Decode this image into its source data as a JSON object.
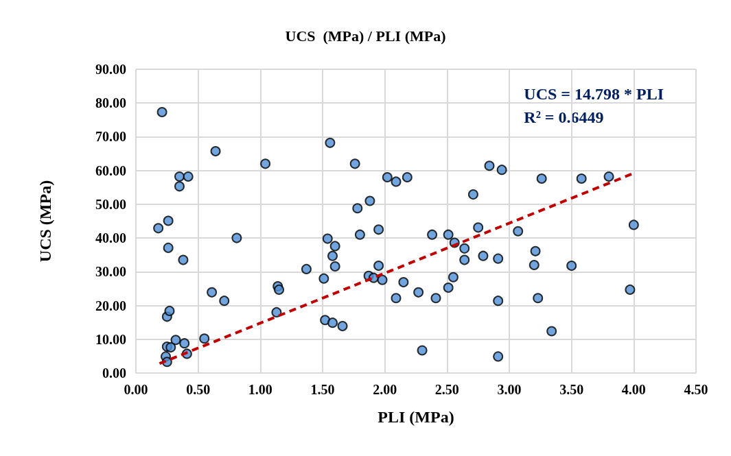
{
  "chart_data": {
    "type": "scatter",
    "title": "UCS  (MPa) / PLI (MPa)",
    "xlabel": "PLI (MPa)",
    "ylabel": "UCS (MPa)",
    "xlim": [
      0,
      4.5
    ],
    "xticks": [
      {
        "value": 0,
        "label": "0.00"
      },
      {
        "value": 0.5,
        "label": "0.50"
      },
      {
        "value": 1,
        "label": "1.00"
      },
      {
        "value": 1.5,
        "label": "1.50"
      },
      {
        "value": 2,
        "label": "2.00"
      },
      {
        "value": 2.5,
        "label": "2.50"
      },
      {
        "value": 3,
        "label": "3.00"
      },
      {
        "value": 3.5,
        "label": "3.50"
      },
      {
        "value": 4,
        "label": "4.00"
      },
      {
        "value": 4.5,
        "label": "4.50"
      }
    ],
    "ylim": [
      0,
      90
    ],
    "yticks": [
      {
        "value": 0,
        "label": "0.00"
      },
      {
        "value": 10,
        "label": "10.00"
      },
      {
        "value": 20,
        "label": "20.00"
      },
      {
        "value": 30,
        "label": "30.00"
      },
      {
        "value": 40,
        "label": "40.00"
      },
      {
        "value": 50,
        "label": "50.00"
      },
      {
        "value": 60,
        "label": "60.00"
      },
      {
        "value": 70,
        "label": "70.00"
      },
      {
        "value": 80,
        "label": "80.00"
      },
      {
        "value": 90,
        "label": "90.00"
      }
    ],
    "grid": true,
    "marker": "circle",
    "annotations": [
      "UCS = 14.798 * PLI\nR² = 0.6449"
    ],
    "series": [
      {
        "color": "#4f8fd6",
        "x": [
          0.21,
          0.18,
          0.26,
          0.26,
          0.38,
          0.35,
          0.42,
          0.35,
          0.64,
          1.04,
          0.81,
          0.61,
          0.71,
          0.25,
          0.27,
          0.55,
          0.32,
          0.39,
          0.25,
          0.28,
          0.41,
          0.24,
          0.25,
          1.14,
          1.15,
          1.13,
          1.37,
          1.51,
          1.56,
          1.76,
          1.54,
          1.6,
          1.58,
          1.6,
          1.52,
          1.58,
          1.66,
          1.78,
          1.88,
          1.8,
          1.95,
          1.95,
          1.87,
          1.91,
          1.98,
          2.02,
          2.09,
          2.18,
          2.15,
          2.09,
          2.27,
          2.41,
          2.3,
          2.38,
          2.51,
          2.56,
          2.64,
          2.64,
          2.79,
          2.91,
          2.75,
          2.71,
          2.84,
          2.94,
          2.55,
          2.51,
          2.91,
          2.91,
          3.07,
          3.21,
          3.2,
          3.23,
          3.34,
          3.26,
          3.58,
          3.8,
          4.0,
          3.5,
          3.97
        ],
        "values": [
          77.3,
          42.9,
          45.1,
          37.1,
          33.5,
          58.2,
          58.2,
          55.3,
          65.7,
          62.0,
          40.0,
          23.9,
          21.4,
          16.7,
          18.4,
          10.2,
          9.8,
          8.8,
          7.8,
          7.6,
          5.7,
          4.9,
          3.3,
          25.7,
          24.7,
          18.0,
          30.8,
          28.0,
          68.2,
          62.0,
          39.8,
          37.6,
          34.7,
          31.6,
          15.7,
          14.9,
          13.9,
          48.8,
          51.0,
          41.0,
          42.5,
          31.8,
          28.8,
          28.2,
          27.6,
          58.0,
          56.7,
          58.0,
          26.9,
          22.2,
          23.9,
          22.2,
          6.7,
          41.0,
          41.0,
          38.6,
          36.9,
          33.5,
          34.7,
          33.9,
          43.1,
          52.9,
          61.4,
          60.2,
          28.4,
          25.3,
          21.4,
          4.9,
          42.0,
          36.1,
          32.0,
          22.2,
          12.4,
          57.6,
          57.6,
          58.2,
          43.9,
          31.8,
          24.7
        ]
      },
      {
        "type": "line",
        "color": "#c00000",
        "line_style": "dashed",
        "marker": "none",
        "x": [
          0.19,
          4.0
        ],
        "values": [
          2.8,
          59.2
        ]
      }
    ]
  }
}
